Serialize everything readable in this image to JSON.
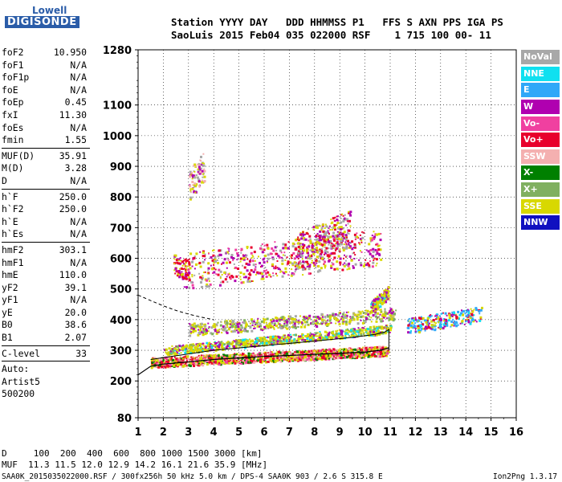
{
  "logo": {
    "line1": "Lowell",
    "line2": "DIGISONDE"
  },
  "header": {
    "row1": "Station YYYY DAY   DDD HHMMSS P1   FFS S AXN PPS IGA PS",
    "row2": "SaoLuis 2015 Feb04 035 022000 RSF    1 715 100 00- 11"
  },
  "params": [
    {
      "name": "foF2",
      "value": "10.950"
    },
    {
      "name": "foF1",
      "value": "N/A"
    },
    {
      "name": "foF1p",
      "value": "N/A"
    },
    {
      "name": "foE",
      "value": "N/A"
    },
    {
      "name": "foEp",
      "value": "0.45"
    },
    {
      "name": "fxI",
      "value": "11.30"
    },
    {
      "name": "foEs",
      "value": "N/A"
    },
    {
      "name": "fmin",
      "value": "1.55"
    },
    {
      "sep": true
    },
    {
      "name": "MUF(D)",
      "value": "35.91"
    },
    {
      "name": "M(D)",
      "value": "3.28"
    },
    {
      "name": "D",
      "value": "N/A"
    },
    {
      "sep": true
    },
    {
      "name": "h`F",
      "value": "250.0"
    },
    {
      "name": "h`F2",
      "value": "250.0"
    },
    {
      "name": "h`E",
      "value": "N/A"
    },
    {
      "name": "h`Es",
      "value": "N/A"
    },
    {
      "sep": true
    },
    {
      "name": "hmF2",
      "value": "303.1"
    },
    {
      "name": "hmF1",
      "value": "N/A"
    },
    {
      "name": "hmE",
      "value": "110.0"
    },
    {
      "name": "yF2",
      "value": "39.1"
    },
    {
      "name": "yF1",
      "value": "N/A"
    },
    {
      "name": "yE",
      "value": "20.0"
    },
    {
      "name": "B0",
      "value": "38.6"
    },
    {
      "name": "B1",
      "value": "2.07"
    },
    {
      "sep": true
    },
    {
      "name": "C-level",
      "value": "33"
    },
    {
      "sep": true
    },
    {
      "text": "Auto:"
    },
    {
      "text": "Artist5"
    },
    {
      "text": "500200"
    }
  ],
  "legend": [
    {
      "label": "NoVal",
      "color": "#a8a8a8"
    },
    {
      "label": "NNE",
      "color": "#10e0f0"
    },
    {
      "label": "E",
      "color": "#30a8f8"
    },
    {
      "label": "W",
      "color": "#b000b0"
    },
    {
      "label": "Vo-",
      "color": "#f040a0"
    },
    {
      "label": "Vo+",
      "color": "#e8002c"
    },
    {
      "label": "SSW",
      "color": "#f4b0b0"
    },
    {
      "label": "X-",
      "color": "#008000"
    },
    {
      "label": "X+",
      "color": "#80b060"
    },
    {
      "label": "SSE",
      "color": "#d8d800"
    },
    {
      "label": "NNW",
      "color": "#1010c0"
    }
  ],
  "chart_data": {
    "type": "scatter",
    "xlim": [
      1,
      16
    ],
    "ylim": [
      80,
      1280
    ],
    "x_ticks": [
      "1",
      "2",
      "3",
      "4",
      "5",
      "6",
      "7",
      "8",
      "9",
      "10",
      "11",
      "12",
      "13",
      "14",
      "15",
      "16"
    ],
    "y_ticks": [
      "80",
      "200",
      "300",
      "400",
      "500",
      "600",
      "700",
      "800",
      "900",
      "1000",
      "1100",
      "1280"
    ],
    "trace": {
      "x": [
        1.0,
        1.5,
        2,
        3,
        4,
        5,
        6,
        7,
        8,
        9,
        10,
        10.6,
        10.95
      ],
      "y": [
        220,
        248,
        255,
        262,
        270,
        275,
        280,
        283,
        287,
        290,
        294,
        300,
        308
      ]
    },
    "dashed": {
      "x": [
        1.0,
        1.5,
        2,
        2.5,
        3,
        3.5,
        4
      ],
      "y": [
        480,
        462,
        445,
        430,
        418,
        408,
        400
      ]
    },
    "profile": {
      "x": [
        1.5,
        2.5,
        4,
        6,
        8,
        9.5,
        10.4,
        10.8,
        10.95,
        10.95
      ],
      "y": [
        270,
        282,
        300,
        315,
        330,
        342,
        352,
        360,
        368,
        300
      ]
    }
  },
  "bottom": {
    "d_row": "D     100  200  400  600  800 1000 1500 3000 [km]",
    "muf_row": "MUF  11.3 11.5 12.0 12.9 14.2 16.1 21.6 35.9 [MHz]",
    "footer_left": "SAA0K_2015035022000.RSF / 300fx256h 50 kHz 5.0 km / DPS-4 SAA0K 903 / 2.6 S 315.8 E",
    "footer_right": "Ion2Png 1.3.17"
  }
}
